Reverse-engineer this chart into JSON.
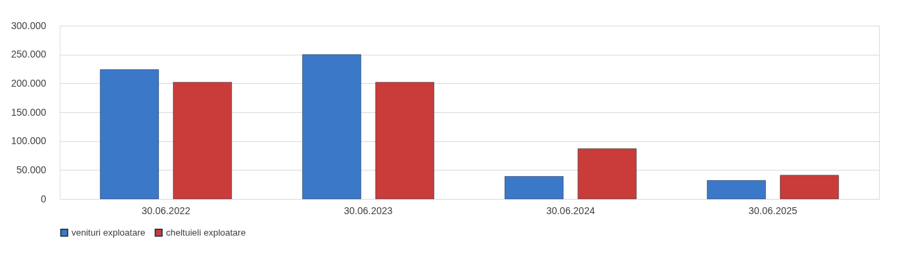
{
  "chart_data": {
    "type": "bar",
    "categories": [
      "30.06.2022",
      "30.06.2023",
      "30.06.2024",
      "30.06.2025"
    ],
    "series": [
      {
        "name": "venituri exploatare",
        "color": "#3b78c8",
        "values": [
          224000,
          250000,
          39000,
          32000
        ]
      },
      {
        "name": "cheltuieli exploatare",
        "color": "#c93c3a",
        "values": [
          202000,
          202000,
          87000,
          41000
        ]
      }
    ],
    "ylim": [
      0,
      300000
    ],
    "yticks": [
      {
        "value": 0,
        "label": "0"
      },
      {
        "value": 50000,
        "label": "50.000"
      },
      {
        "value": 100000,
        "label": "100.000"
      },
      {
        "value": 150000,
        "label": "150.000"
      },
      {
        "value": 200000,
        "label": "200.000"
      },
      {
        "value": 250000,
        "label": "250.000"
      },
      {
        "value": 300000,
        "label": "300.000"
      }
    ],
    "grid": "y",
    "legend": "bottom"
  }
}
